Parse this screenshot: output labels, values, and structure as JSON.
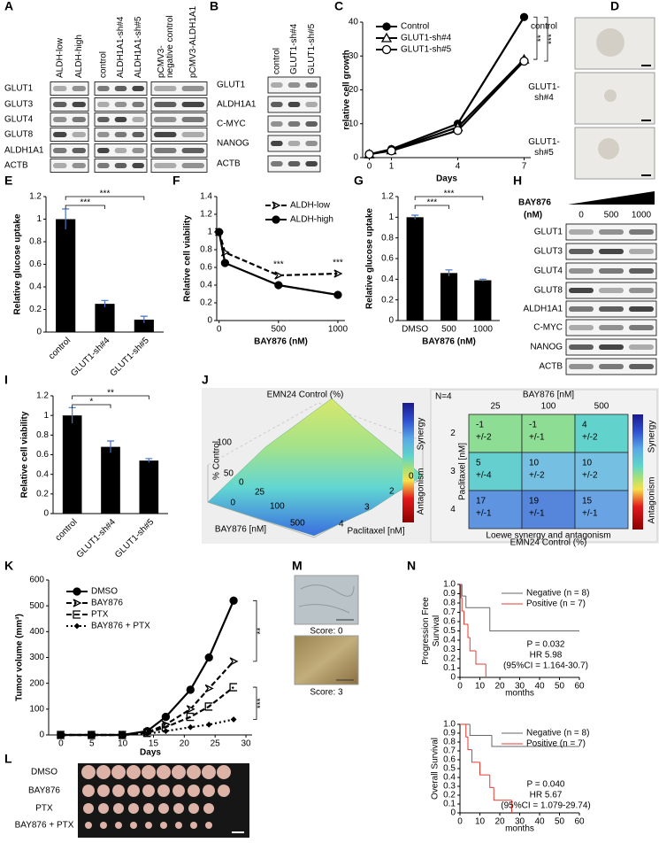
{
  "panel_labels": [
    "A",
    "B",
    "C",
    "D",
    "E",
    "F",
    "G",
    "H",
    "I",
    "J",
    "K",
    "L",
    "M",
    "N"
  ],
  "blots": {
    "A": {
      "columns": [
        "ALDH-low",
        "ALDH-high",
        "control",
        "ALDH1A1-sh#4",
        "ALDH1A1-sh#5",
        "pCMV3-negative control",
        "pCMV3-ALDH1A1"
      ],
      "rows": [
        "GLUT1",
        "GLUT3",
        "GLUT4",
        "GLUT8",
        "ALDH1A1",
        "ACTB"
      ]
    },
    "B": {
      "columns": [
        "control",
        "GLUT1-sh#4",
        "GLUT1-sh#5"
      ],
      "rows": [
        "GLUT1",
        "ALDH1A1",
        "C-MYC",
        "NANOG",
        "ACTB"
      ]
    },
    "H": {
      "treatment": "BAY876",
      "unit": "(nM)",
      "columns": [
        "0",
        "500",
        "1000"
      ],
      "rows": [
        "GLUT1",
        "GLUT3",
        "GLUT4",
        "GLUT8",
        "ALDH1A1",
        "C-MYC",
        "NANOG",
        "ACTB"
      ]
    }
  },
  "images": {
    "D": [
      "control",
      "GLUT1-sh#4",
      "GLUT1-sh#5"
    ],
    "L": [
      "DMSO",
      "BAY876",
      "PTX",
      "BAY876 + PTX"
    ],
    "M": [
      "Score: 0",
      "Score: 3"
    ]
  },
  "surface": {
    "title": "EMN24  Control (%)",
    "zlabel": "% Control",
    "zticks": [
      0,
      50,
      100
    ],
    "xlabel": "BAY876 [nM]",
    "xticks": [
      0,
      25,
      100,
      500
    ],
    "ylabel": "Paclitaxel [nM]",
    "yticks": [
      0,
      2,
      3,
      4
    ],
    "legend": [
      "Synergy",
      "Antagonism"
    ]
  },
  "chart_data": [
    {
      "type": "line",
      "xlabel": "Days",
      "ylabel": "relative cell growth",
      "x": [
        0,
        1,
        4,
        7
      ],
      "xlim": [
        -0.3,
        7.3
      ],
      "xticks": [
        0,
        1,
        4,
        7
      ],
      "ylim": [
        0,
        40
      ],
      "yticks": [
        0,
        10,
        20,
        30,
        40
      ],
      "series": [
        {
          "name": "Control",
          "color": "#000000",
          "marker": "circle",
          "line": "solid",
          "values": [
            1,
            2.5,
            10,
            41.5
          ]
        },
        {
          "name": "GLUT1-sh#4",
          "color": "#000000",
          "marker": "triangle-open",
          "line": "solid",
          "values": [
            1,
            2.2,
            9,
            29
          ]
        },
        {
          "name": "GLUT1-sh#5",
          "color": "#000000",
          "marker": "circle-open",
          "line": "solid",
          "values": [
            1,
            2,
            8,
            28.5
          ]
        }
      ],
      "annotations": [
        "**",
        "***"
      ]
    },
    {
      "type": "bar",
      "ylabel": "Relative glucose uptake",
      "categories": [
        "control",
        "GLUT1-sh#4",
        "GLUT1-sh#5"
      ],
      "values": [
        1,
        0.25,
        0.11
      ],
      "errors": [
        0.09,
        0.03,
        0.03
      ],
      "color": "#000000",
      "error_color": "#4472c4",
      "ylim": [
        0,
        1.2
      ],
      "yticks": [
        0,
        0.2,
        0.4,
        0.6,
        0.8,
        1,
        1.2
      ],
      "annotations": [
        "***",
        "***"
      ]
    },
    {
      "type": "line",
      "xlabel": "BAY876 (nM)",
      "ylabel": "Relative cell viability",
      "x": [
        0,
        50,
        500,
        1000
      ],
      "xlim": [
        -20,
        1060
      ],
      "xticks": [
        0,
        500,
        1000
      ],
      "ylim": [
        0,
        1.4
      ],
      "yticks": [
        0,
        0.2,
        0.4,
        0.6,
        0.8,
        1,
        1.2,
        1.4
      ],
      "series": [
        {
          "name": "ALDH-low",
          "color": "#000000",
          "marker": "arrow-open",
          "line": "dashed",
          "values": [
            1,
            0.77,
            0.51,
            0.53
          ]
        },
        {
          "name": "ALDH-high",
          "color": "#000000",
          "marker": "circle",
          "line": "solid",
          "values": [
            1,
            0.65,
            0.4,
            0.29
          ]
        }
      ],
      "annotations": [
        "***",
        "***"
      ]
    },
    {
      "type": "bar",
      "xlabel": "BAY876  (nM)",
      "ylabel": "Relative glucose uptake",
      "categories": [
        "DMSO",
        "500",
        "1000"
      ],
      "values": [
        1,
        0.46,
        0.39
      ],
      "errors": [
        0.02,
        0.03,
        0.01
      ],
      "color": "#000000",
      "error_color": "#4472c4",
      "ylim": [
        0,
        1.2
      ],
      "yticks": [
        0,
        0.2,
        0.4,
        0.6,
        0.8,
        1,
        1.2
      ],
      "annotations": [
        "***",
        "***"
      ]
    },
    {
      "type": "bar",
      "ylabel": "Relative cell viability",
      "categories": [
        "control",
        "GLUT1-sh#4",
        "GLUT1-sh#5"
      ],
      "values": [
        1,
        0.68,
        0.54
      ],
      "errors": [
        0.08,
        0.06,
        0.02
      ],
      "color": "#000000",
      "error_color": "#4472c4",
      "ylim": [
        0,
        1.2
      ],
      "yticks": [
        0,
        0.2,
        0.4,
        0.6,
        0.8,
        1,
        1.2
      ],
      "annotations": [
        "*",
        "**"
      ]
    },
    {
      "type": "heatmap",
      "title": "N=4",
      "xlabel": "BAY876 [nM]",
      "ylabel": "Paclitaxel [nM]",
      "categories": [
        "25",
        "100",
        "500"
      ],
      "rows": [
        "2",
        "3",
        "4"
      ],
      "values": [
        [
          -1,
          -1,
          4
        ],
        [
          5,
          10,
          10
        ],
        [
          17,
          19,
          15
        ]
      ],
      "error_labels": [
        [
          "+/-2",
          "+/-1",
          "+/-2"
        ],
        [
          "+/-4",
          "+/-2",
          "+/-2"
        ],
        [
          "+/-1",
          "+/-1",
          "+/-1"
        ]
      ],
      "caption": "Loewe synergy and antagonism",
      "subcaption": "EMN24  Control (%)",
      "legend": [
        "Synergy",
        "Antagonism"
      ]
    },
    {
      "type": "line",
      "xlabel": "Days",
      "ylabel": "Tumor volume (mm³)",
      "x": [
        0,
        5,
        10,
        14,
        17,
        21,
        24,
        28
      ],
      "xlim": [
        -2,
        31
      ],
      "xticks": [
        0,
        5,
        10,
        15,
        20,
        25,
        30
      ],
      "ylim": [
        0,
        600
      ],
      "yticks": [
        0,
        100,
        200,
        300,
        400,
        500,
        600
      ],
      "series": [
        {
          "name": "DMSO",
          "color": "#000000",
          "marker": "circle",
          "line": "solid",
          "values": [
            0,
            0,
            0,
            15,
            70,
            175,
            300,
            520
          ]
        },
        {
          "name": "BAY876",
          "color": "#000000",
          "marker": "arrow-open",
          "line": "dashed",
          "values": [
            0,
            0,
            0,
            10,
            40,
            100,
            180,
            285
          ]
        },
        {
          "name": "PTX",
          "color": "#000000",
          "marker": "square-open",
          "line": "dashed",
          "values": [
            0,
            0,
            0,
            8,
            30,
            70,
            110,
            185
          ]
        },
        {
          "name": "BAY876 + PTX",
          "color": "#000000",
          "marker": "diamond",
          "line": "dotted",
          "values": [
            0,
            0,
            0,
            5,
            15,
            30,
            40,
            60
          ]
        }
      ],
      "annotations": [
        "**",
        "***"
      ]
    },
    {
      "type": "km",
      "xlabel": "months",
      "ylabel": "Progression Free Survival",
      "xlim": [
        0,
        60
      ],
      "xticks": [
        0,
        10,
        20,
        30,
        40,
        50,
        60
      ],
      "ylim": [
        0,
        1
      ],
      "yticks": [
        0,
        0.1,
        0.2,
        0.3,
        0.4,
        0.5,
        0.6,
        0.7,
        0.8,
        0.9,
        {
          "value": 1,
          "label": "1.0"
        }
      ],
      "series": [
        {
          "name": "Negative (n = 8)",
          "color": "#666666",
          "x": [
            0,
            1,
            3,
            15,
            60
          ],
          "values": [
            1,
            0.875,
            0.75,
            0.5,
            0.5
          ]
        },
        {
          "name": "Positive (n = 7)",
          "color": "#e03c31",
          "x": [
            0,
            0.5,
            1,
            2,
            4,
            5,
            8,
            13
          ],
          "values": [
            1,
            0.857,
            0.714,
            0.571,
            0.429,
            0.286,
            0.143,
            0
          ]
        }
      ],
      "annotations": [
        "P = 0.032",
        "HR 5.98",
        "(95%CI = 1.164-30.7)"
      ]
    },
    {
      "type": "km",
      "xlabel": "months",
      "ylabel": "Overall Survival",
      "xlim": [
        0,
        60
      ],
      "xticks": [
        0,
        10,
        20,
        30,
        40,
        50,
        60
      ],
      "ylim": [
        0,
        1
      ],
      "yticks": [
        0,
        0.1,
        0.2,
        0.3,
        0.4,
        0.5,
        0.6,
        0.7,
        0.8,
        0.9,
        {
          "value": 1,
          "label": "1.0"
        }
      ],
      "series": [
        {
          "name": "Negative (n = 8)",
          "color": "#666666",
          "x": [
            0,
            5,
            16,
            60
          ],
          "values": [
            1,
            0.875,
            0.75,
            0.75
          ]
        },
        {
          "name": "Positive (n = 7)",
          "color": "#e03c31",
          "x": [
            0,
            3,
            4,
            6,
            10,
            15,
            17,
            26
          ],
          "values": [
            1,
            0.857,
            0.714,
            0.571,
            0.429,
            0.286,
            0.143,
            0
          ]
        }
      ],
      "annotations": [
        "P = 0.040",
        "HR 5.67",
        "(95%CI = 1.079-29.74)"
      ]
    }
  ]
}
